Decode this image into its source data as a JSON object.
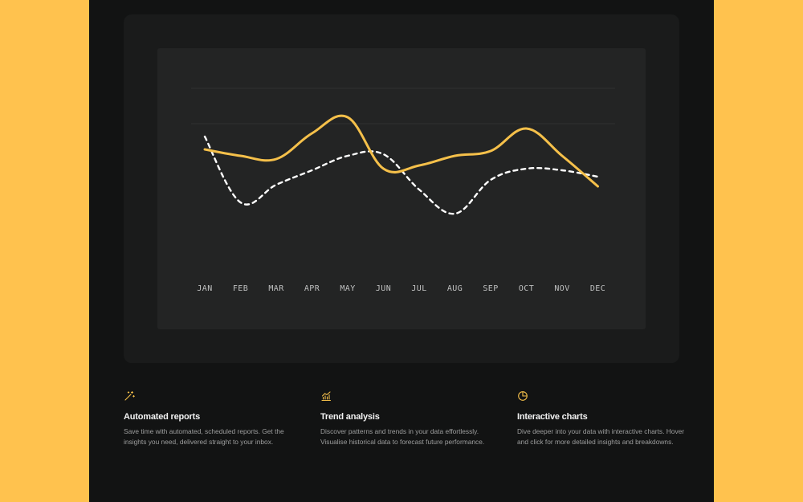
{
  "colors": {
    "accent": "#F5C04A",
    "secondary": "#FFFFFF",
    "panel": "#232424",
    "frame": "#121313",
    "background": "#FFC24E"
  },
  "chart_data": {
    "type": "line",
    "categories": [
      "JAN",
      "FEB",
      "MAR",
      "APR",
      "MAY",
      "JUN",
      "JUL",
      "AUG",
      "SEP",
      "OCT",
      "NOV",
      "DEC"
    ],
    "series": [
      {
        "style": "solid",
        "color": "#F5C04A",
        "values": [
          62,
          58,
          56,
          72,
          82,
          50,
          52,
          58,
          61,
          75,
          58,
          39
        ]
      },
      {
        "style": "dashed",
        "color": "#FFFFFF",
        "values": [
          70,
          29,
          40,
          49,
          58,
          59,
          37,
          22,
          43,
          50,
          49,
          45
        ]
      }
    ],
    "ylim": [
      0,
      100
    ],
    "grid": "horizontal",
    "legend": "none"
  },
  "features": [
    {
      "icon": "magic-wand-icon",
      "title": "Automated reports",
      "description": "Save time with automated, scheduled reports. Get the insights you need, delivered straight to your inbox."
    },
    {
      "icon": "trend-chart-icon",
      "title": "Trend analysis",
      "description": "Discover patterns and trends in your data effortlessly. Visualise historical data to forecast future performance."
    },
    {
      "icon": "pie-chart-icon",
      "title": "Interactive charts",
      "description": "Dive deeper into your data with interactive charts. Hover and click for more detailed insights and breakdowns."
    }
  ]
}
